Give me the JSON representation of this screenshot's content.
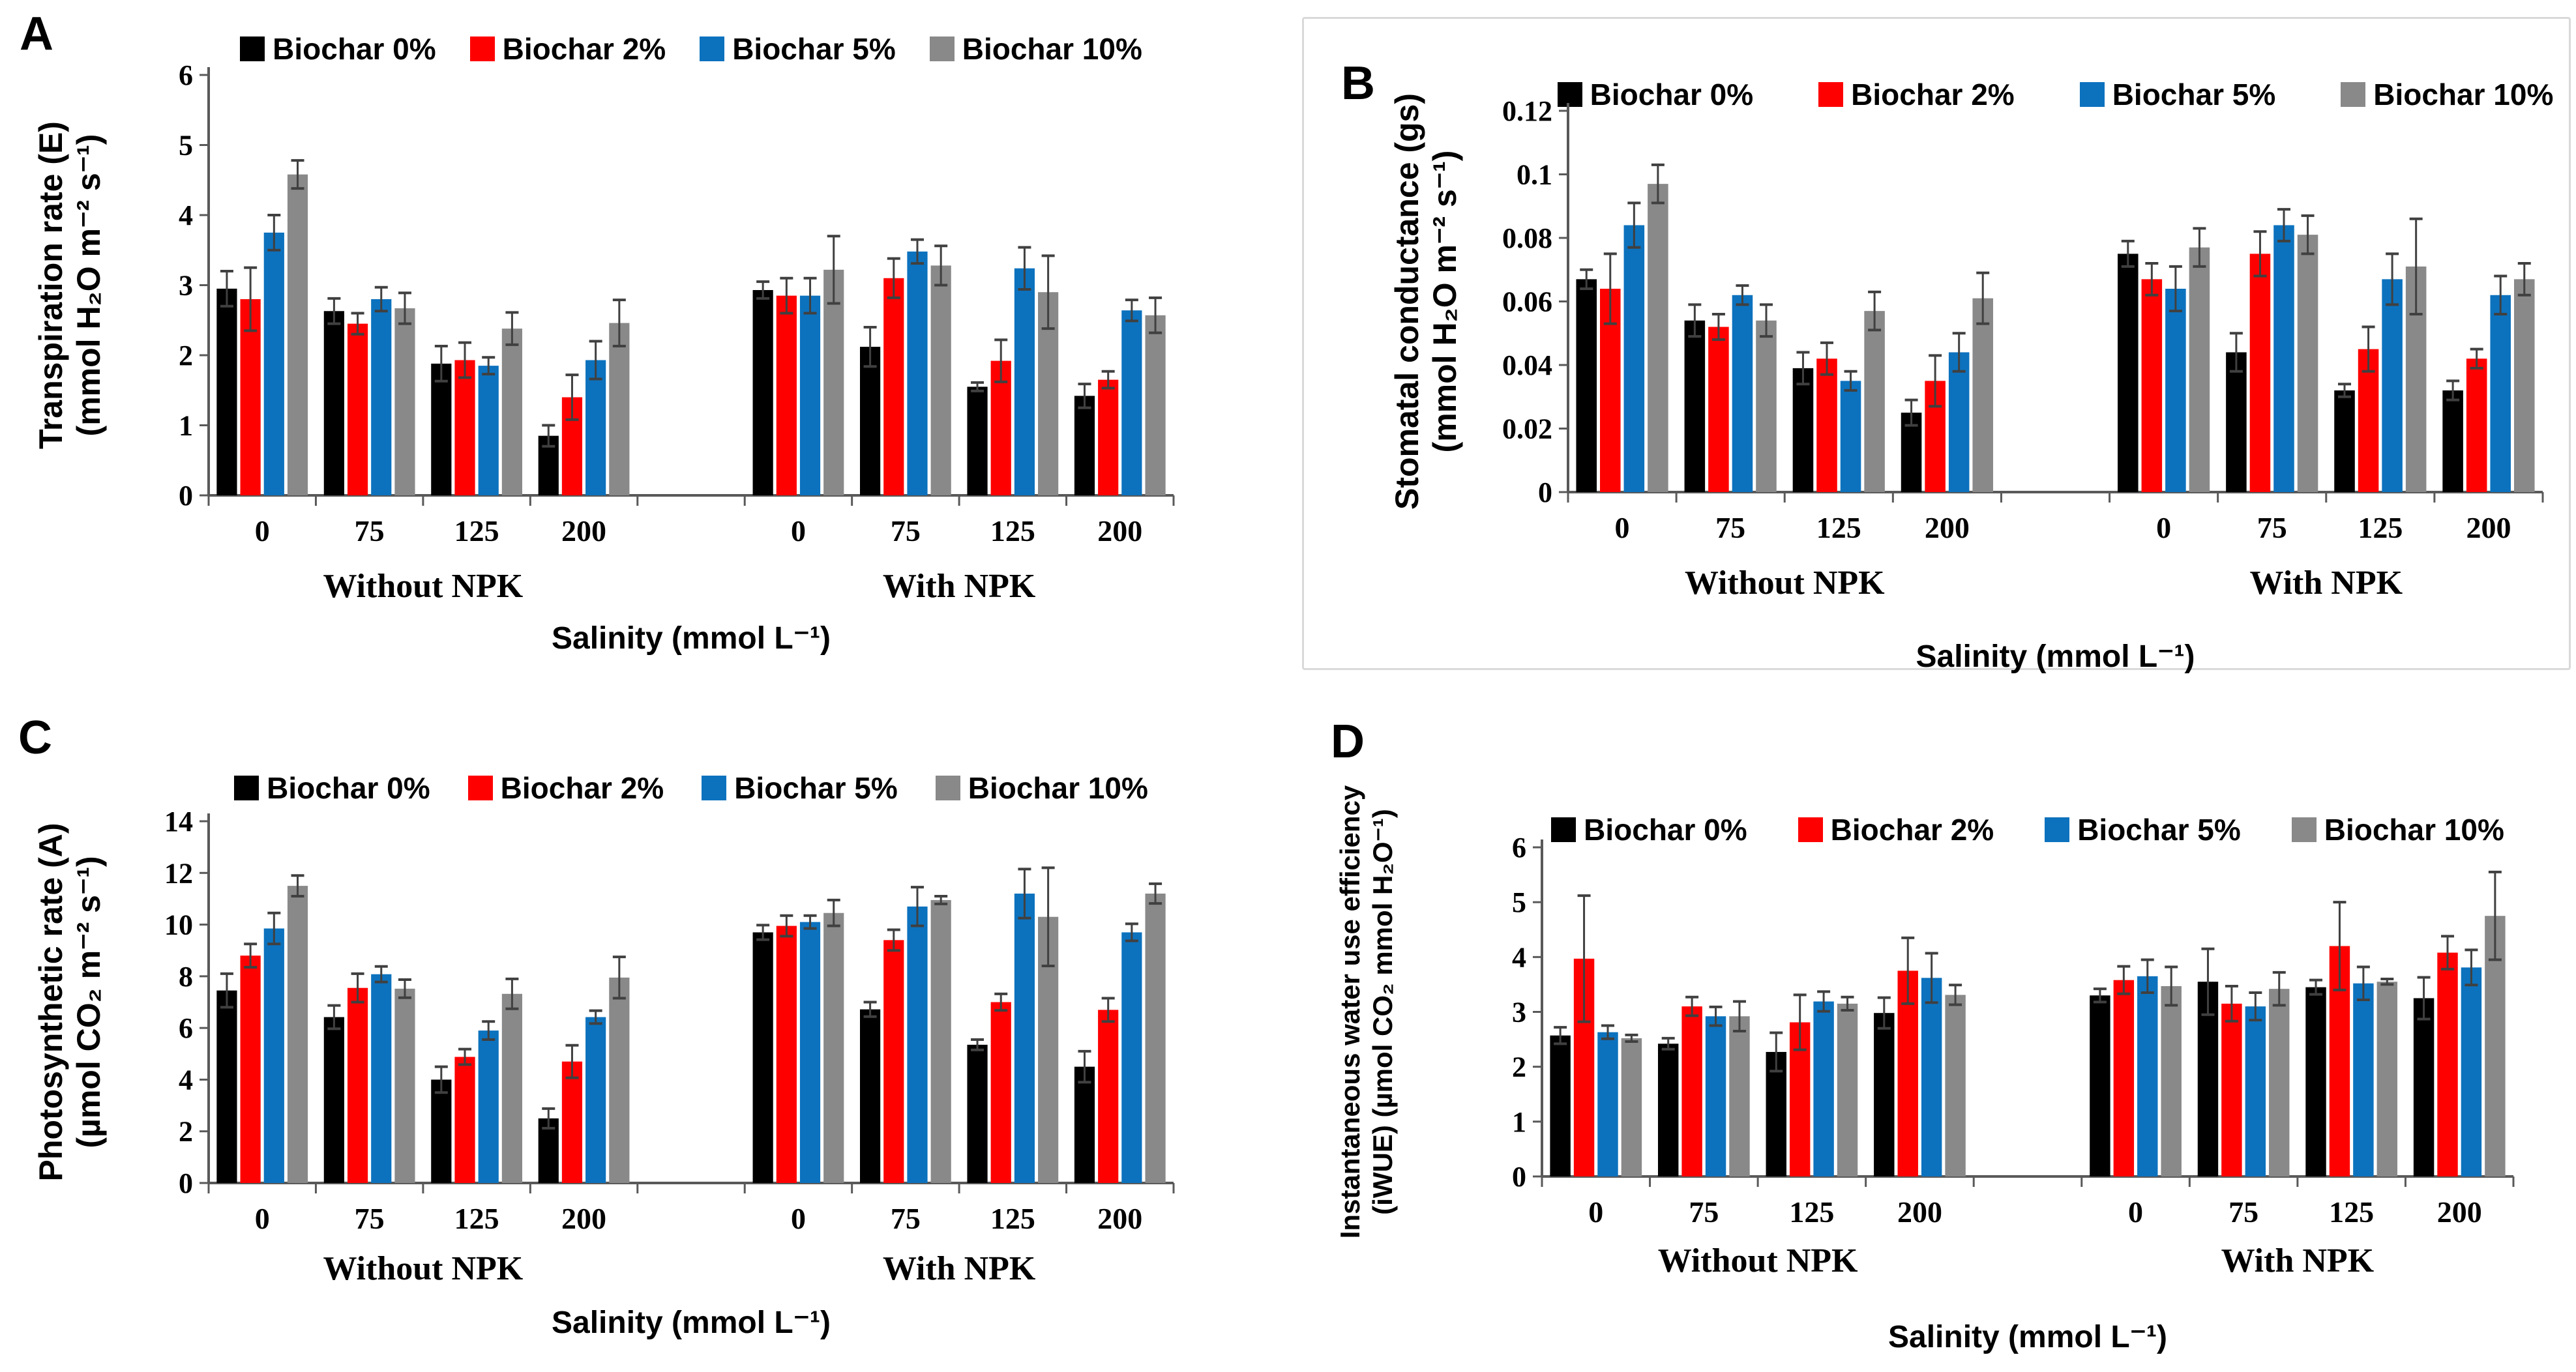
{
  "figure": {
    "panel_letters": [
      "A",
      "B",
      "C",
      "D"
    ],
    "legend": [
      {
        "label": "Biochar 0%",
        "color": "#000000"
      },
      {
        "label": "Biochar 2%",
        "color": "#FF0000"
      },
      {
        "label": "Biochar 5%",
        "color": "#0C72BE"
      },
      {
        "label": "Biochar 10%",
        "color": "#898989"
      }
    ],
    "axis_color": "#595959",
    "error_bar_color": "#404040",
    "xlabel": "Salinity (mmol L⁻¹)",
    "section_labels": [
      "Without NPK",
      "With NPK"
    ],
    "group_labels": [
      "0",
      "75",
      "125",
      "200"
    ]
  },
  "chart_data": [
    {
      "panel": "A",
      "type": "bar",
      "title_lines": [
        "Transpiration rate (E)",
        "(mmol H₂O m⁻² s⁻¹)"
      ],
      "ylabel": "Transpiration rate (E) (mmol H₂O m⁻² s⁻¹)",
      "xlabel": "Salinity (mmol L⁻¹)",
      "ylim": [
        0,
        6
      ],
      "yticks": [
        "0",
        "1",
        "2",
        "3",
        "4",
        "5",
        "6"
      ],
      "categories": [
        "0",
        "75",
        "125",
        "200"
      ],
      "sections": [
        {
          "label": "Without NPK",
          "series": [
            {
              "name": "Biochar 0%",
              "values": [
                2.95,
                2.63,
                1.88,
                0.85
              ],
              "errors": [
                0.25,
                0.18,
                0.25,
                0.15
              ]
            },
            {
              "name": "Biochar 2%",
              "values": [
                2.8,
                2.45,
                1.93,
                1.4
              ],
              "errors": [
                0.45,
                0.15,
                0.25,
                0.32
              ]
            },
            {
              "name": "Biochar 5%",
              "values": [
                3.75,
                2.8,
                1.85,
                1.93
              ],
              "errors": [
                0.25,
                0.17,
                0.12,
                0.27
              ]
            },
            {
              "name": "Biochar 10%",
              "values": [
                4.58,
                2.67,
                2.38,
                2.46
              ],
              "errors": [
                0.2,
                0.22,
                0.23,
                0.33
              ]
            }
          ]
        },
        {
          "label": "With NPK",
          "series": [
            {
              "name": "Biochar 0%",
              "values": [
                2.93,
                2.12,
                1.55,
                1.42
              ],
              "errors": [
                0.12,
                0.28,
                0.06,
                0.17
              ]
            },
            {
              "name": "Biochar 2%",
              "values": [
                2.85,
                3.1,
                1.92,
                1.65
              ],
              "errors": [
                0.25,
                0.28,
                0.3,
                0.12
              ]
            },
            {
              "name": "Biochar 5%",
              "values": [
                2.85,
                3.48,
                3.24,
                2.64
              ],
              "errors": [
                0.25,
                0.17,
                0.3,
                0.15
              ]
            },
            {
              "name": "Biochar 10%",
              "values": [
                3.22,
                3.28,
                2.9,
                2.57
              ],
              "errors": [
                0.48,
                0.28,
                0.52,
                0.25
              ]
            }
          ]
        }
      ]
    },
    {
      "panel": "B",
      "type": "bar",
      "title_lines": [
        "Stomatal conductance (gs)",
        "(mmol H₂O m⁻² s⁻¹)"
      ],
      "ylabel": "Stomatal conductance (gs) (mmol H₂O m⁻² s⁻¹)",
      "xlabel": "Salinity (mmol L⁻¹)",
      "ylim": [
        0,
        0.12
      ],
      "yticks": [
        "0",
        "0.02",
        "0.04",
        "0.06",
        "0.08",
        "0.1",
        "0.12"
      ],
      "categories": [
        "0",
        "75",
        "125",
        "200"
      ],
      "sections": [
        {
          "label": "Without NPK",
          "series": [
            {
              "name": "Biochar 0%",
              "values": [
                0.067,
                0.054,
                0.039,
                0.025
              ],
              "errors": [
                0.003,
                0.005,
                0.005,
                0.004
              ]
            },
            {
              "name": "Biochar 2%",
              "values": [
                0.064,
                0.052,
                0.042,
                0.035
              ],
              "errors": [
                0.011,
                0.004,
                0.005,
                0.008
              ]
            },
            {
              "name": "Biochar 5%",
              "values": [
                0.084,
                0.062,
                0.035,
                0.044
              ],
              "errors": [
                0.007,
                0.003,
                0.003,
                0.006
              ]
            },
            {
              "name": "Biochar 10%",
              "values": [
                0.097,
                0.054,
                0.057,
                0.061
              ],
              "errors": [
                0.006,
                0.005,
                0.006,
                0.008
              ]
            }
          ]
        },
        {
          "label": "With NPK",
          "series": [
            {
              "name": "Biochar 0%",
              "values": [
                0.075,
                0.044,
                0.032,
                0.032
              ],
              "errors": [
                0.004,
                0.006,
                0.002,
                0.003
              ]
            },
            {
              "name": "Biochar 2%",
              "values": [
                0.067,
                0.075,
                0.045,
                0.042
              ],
              "errors": [
                0.005,
                0.007,
                0.007,
                0.003
              ]
            },
            {
              "name": "Biochar 5%",
              "values": [
                0.064,
                0.084,
                0.067,
                0.062
              ],
              "errors": [
                0.007,
                0.005,
                0.008,
                0.006
              ]
            },
            {
              "name": "Biochar 10%",
              "values": [
                0.077,
                0.081,
                0.071,
                0.067
              ],
              "errors": [
                0.006,
                0.006,
                0.015,
                0.005
              ]
            }
          ]
        }
      ]
    },
    {
      "panel": "C",
      "type": "bar",
      "title_lines": [
        "Photosynthetic rate (A)",
        "(µmol CO₂ m⁻² s⁻¹)"
      ],
      "ylabel": "Photosynthetic rate (A) (µmol CO₂ m⁻² s⁻¹)",
      "xlabel": "Salinity (mmol L⁻¹)",
      "ylim": [
        0,
        14
      ],
      "yticks": [
        "0",
        "2",
        "4",
        "6",
        "8",
        "10",
        "12",
        "14"
      ],
      "categories": [
        "0",
        "75",
        "125",
        "200"
      ],
      "sections": [
        {
          "label": "Without NPK",
          "series": [
            {
              "name": "Biochar 0%",
              "values": [
                7.45,
                6.42,
                4.0,
                2.5
              ],
              "errors": [
                0.65,
                0.45,
                0.5,
                0.38
              ]
            },
            {
              "name": "Biochar 2%",
              "values": [
                8.8,
                7.55,
                4.88,
                4.7
              ],
              "errors": [
                0.45,
                0.55,
                0.3,
                0.63
              ]
            },
            {
              "name": "Biochar 5%",
              "values": [
                9.85,
                8.08,
                5.9,
                6.42
              ],
              "errors": [
                0.6,
                0.3,
                0.35,
                0.25
              ]
            },
            {
              "name": "Biochar 10%",
              "values": [
                11.5,
                7.52,
                7.32,
                7.95
              ],
              "errors": [
                0.4,
                0.35,
                0.58,
                0.8
              ]
            }
          ]
        },
        {
          "label": "With NPK",
          "series": [
            {
              "name": "Biochar 0%",
              "values": [
                9.7,
                6.72,
                5.35,
                4.5
              ],
              "errors": [
                0.28,
                0.28,
                0.2,
                0.6
              ]
            },
            {
              "name": "Biochar 2%",
              "values": [
                9.95,
                9.4,
                7.0,
                6.7
              ],
              "errors": [
                0.4,
                0.4,
                0.32,
                0.45
              ]
            },
            {
              "name": "Biochar 5%",
              "values": [
                10.1,
                10.7,
                11.2,
                9.7
              ],
              "errors": [
                0.25,
                0.75,
                0.95,
                0.33
              ]
            },
            {
              "name": "Biochar 10%",
              "values": [
                10.45,
                10.95,
                10.3,
                11.2
              ],
              "errors": [
                0.5,
                0.15,
                1.9,
                0.38
              ]
            }
          ]
        }
      ]
    },
    {
      "panel": "D",
      "type": "bar",
      "title_lines": [
        "Instantaneous water use efficiency",
        "(iWUE) (µmol CO₂ mmol H₂O⁻¹)"
      ],
      "ylabel": "Instantaneous water use efficiency (iWUE) (µmol CO₂ mmol H₂O⁻¹)",
      "xlabel": "Salinity (mmol L⁻¹)",
      "ylim": [
        0,
        6
      ],
      "yticks": [
        "0",
        "1",
        "2",
        "3",
        "4",
        "5",
        "6"
      ],
      "categories": [
        "0",
        "75",
        "125",
        "200"
      ],
      "sections": [
        {
          "label": "Without NPK",
          "series": [
            {
              "name": "Biochar 0%",
              "values": [
                2.57,
                2.42,
                2.27,
                2.98
              ],
              "errors": [
                0.15,
                0.1,
                0.35,
                0.28
              ]
            },
            {
              "name": "Biochar 2%",
              "values": [
                3.97,
                3.1,
                2.81,
                3.75
              ],
              "errors": [
                1.15,
                0.17,
                0.5,
                0.6
              ]
            },
            {
              "name": "Biochar 5%",
              "values": [
                2.63,
                2.92,
                3.19,
                3.62
              ],
              "errors": [
                0.12,
                0.17,
                0.18,
                0.45
              ]
            },
            {
              "name": "Biochar 10%",
              "values": [
                2.52,
                2.92,
                3.15,
                3.31
              ],
              "errors": [
                0.06,
                0.27,
                0.12,
                0.18
              ]
            }
          ]
        },
        {
          "label": "With NPK",
          "series": [
            {
              "name": "Biochar 0%",
              "values": [
                3.3,
                3.55,
                3.45,
                3.25
              ],
              "errors": [
                0.12,
                0.6,
                0.13,
                0.38
              ]
            },
            {
              "name": "Biochar 2%",
              "values": [
                3.58,
                3.15,
                4.2,
                4.08
              ],
              "errors": [
                0.25,
                0.32,
                0.8,
                0.3
              ]
            },
            {
              "name": "Biochar 5%",
              "values": [
                3.65,
                3.1,
                3.52,
                3.81
              ],
              "errors": [
                0.3,
                0.25,
                0.3,
                0.32
              ]
            },
            {
              "name": "Biochar 10%",
              "values": [
                3.47,
                3.42,
                3.55,
                4.75
              ],
              "errors": [
                0.35,
                0.3,
                0.05,
                0.8
              ]
            }
          ]
        }
      ]
    }
  ]
}
